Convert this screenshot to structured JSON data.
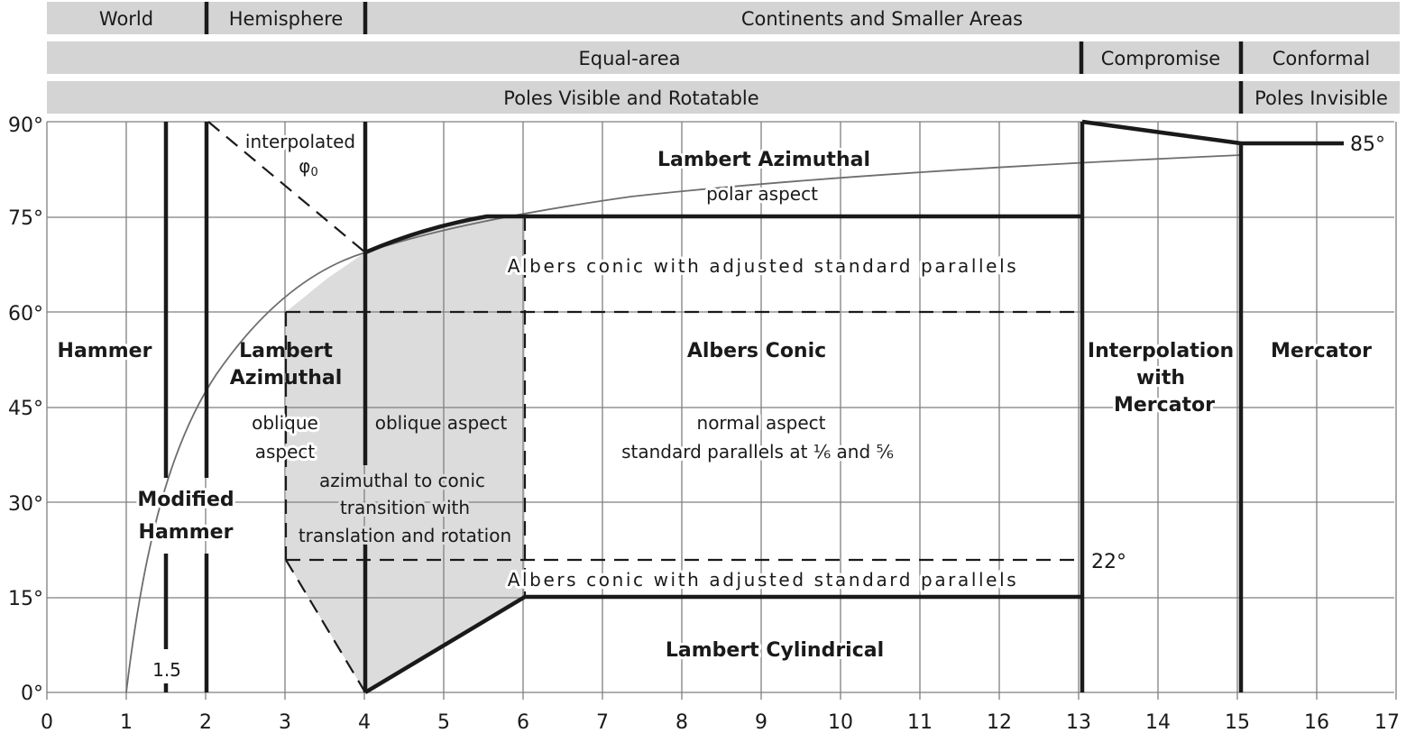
{
  "bands": {
    "scale": {
      "world": "World",
      "hemisphere": "Hemisphere",
      "continents": "Continents and Smaller Areas"
    },
    "property": {
      "equal_area": "Equal-area",
      "compromise": "Compromise",
      "conformal": "Conformal"
    },
    "poles": {
      "visible": "Poles Visible and Rotatable",
      "invisible": "Poles Invisible"
    }
  },
  "axes": {
    "x_ticks": [
      "0",
      "1",
      "2",
      "3",
      "4",
      "5",
      "6",
      "7",
      "8",
      "9",
      "10",
      "11",
      "12",
      "13",
      "14",
      "15",
      "16",
      "17"
    ],
    "y_ticks": [
      "0°",
      "15°",
      "30°",
      "45°",
      "60°",
      "75°",
      "90°"
    ]
  },
  "labels": {
    "interpolated": "interpolated",
    "phi0": "φ",
    "phi0_sub": "0",
    "lambert_azimuthal_polar_name": "Lambert Azimuthal",
    "polar_aspect": "polar aspect",
    "albers_adjusted_upper": "Albers conic with adjusted standard parallels",
    "hammer": "Hammer",
    "lambert_oblique_name_1": "Lambert",
    "lambert_oblique_name_2": "Azimuthal",
    "oblique_1": "oblique",
    "aspect_1": "aspect",
    "oblique_aspect": "oblique aspect",
    "transition_1": "azimuthal to conic",
    "transition_2": "transition with",
    "transition_3": "translation and rotation",
    "albers_conic": "Albers Conic",
    "normal_aspect": "normal aspect",
    "standard_parallels": "standard parallels at ⅙ and ⅚",
    "interp_1": "Interpolation",
    "interp_2": "with",
    "interp_3": "Mercator",
    "mercator": "Mercator",
    "modified_1": "Modified",
    "modified_2": "Hammer",
    "value_1_5": "1.5",
    "value_22": "22°",
    "value_85": "85°",
    "albers_adjusted_lower": "Albers conic with adjusted standard parallels",
    "lambert_cylindrical": "Lambert Cylindrical"
  },
  "colors": {
    "band_fill": "#d4d4d4",
    "transition_fill": "#dcdcdc",
    "grid": "#7f7f7f",
    "boundary": "#1a1a1a",
    "curve": "#6e6e6e"
  }
}
